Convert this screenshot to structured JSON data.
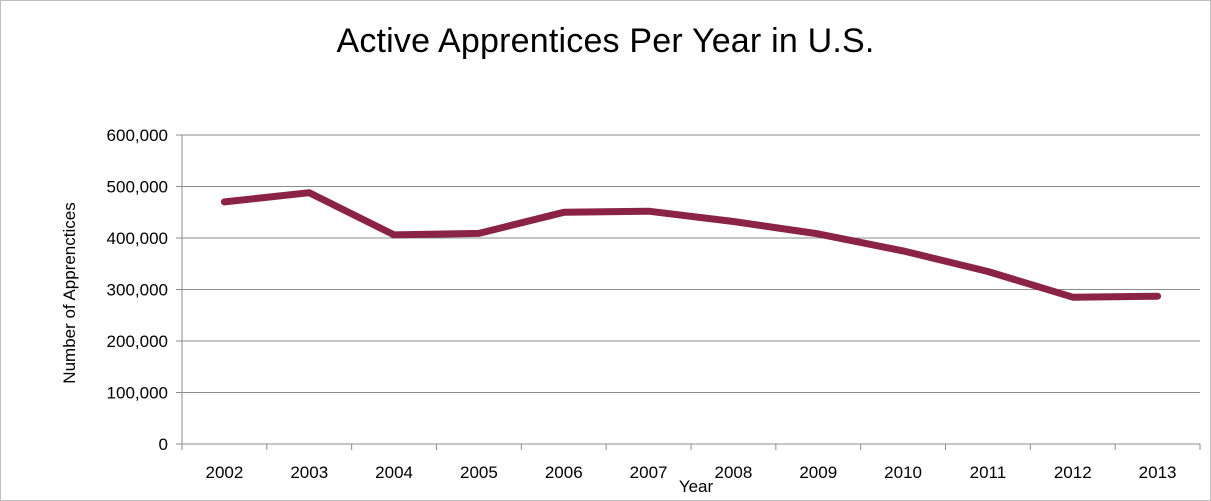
{
  "chart_data": {
    "type": "line",
    "title": "Active Apprentices Per Year in U.S.",
    "xlabel": "Year",
    "ylabel": "Number of Apprenctices",
    "categories": [
      "2002",
      "2003",
      "2004",
      "2005",
      "2006",
      "2007",
      "2008",
      "2009",
      "2010",
      "2011",
      "2012",
      "2013"
    ],
    "series": [
      {
        "values": [
          470000,
          488000,
          406000,
          409000,
          450000,
          452000,
          432000,
          408000,
          375000,
          335000,
          285000,
          287000
        ],
        "color": "#8b2346"
      }
    ],
    "ylim": [
      0,
      600000
    ],
    "yticks": [
      0,
      100000,
      200000,
      300000,
      400000,
      500000,
      600000
    ],
    "ytick_labels": [
      "0",
      "100,000",
      "200,000",
      "300,000",
      "400,000",
      "500,000",
      "600,000"
    ],
    "grid": true,
    "legend": "none"
  }
}
